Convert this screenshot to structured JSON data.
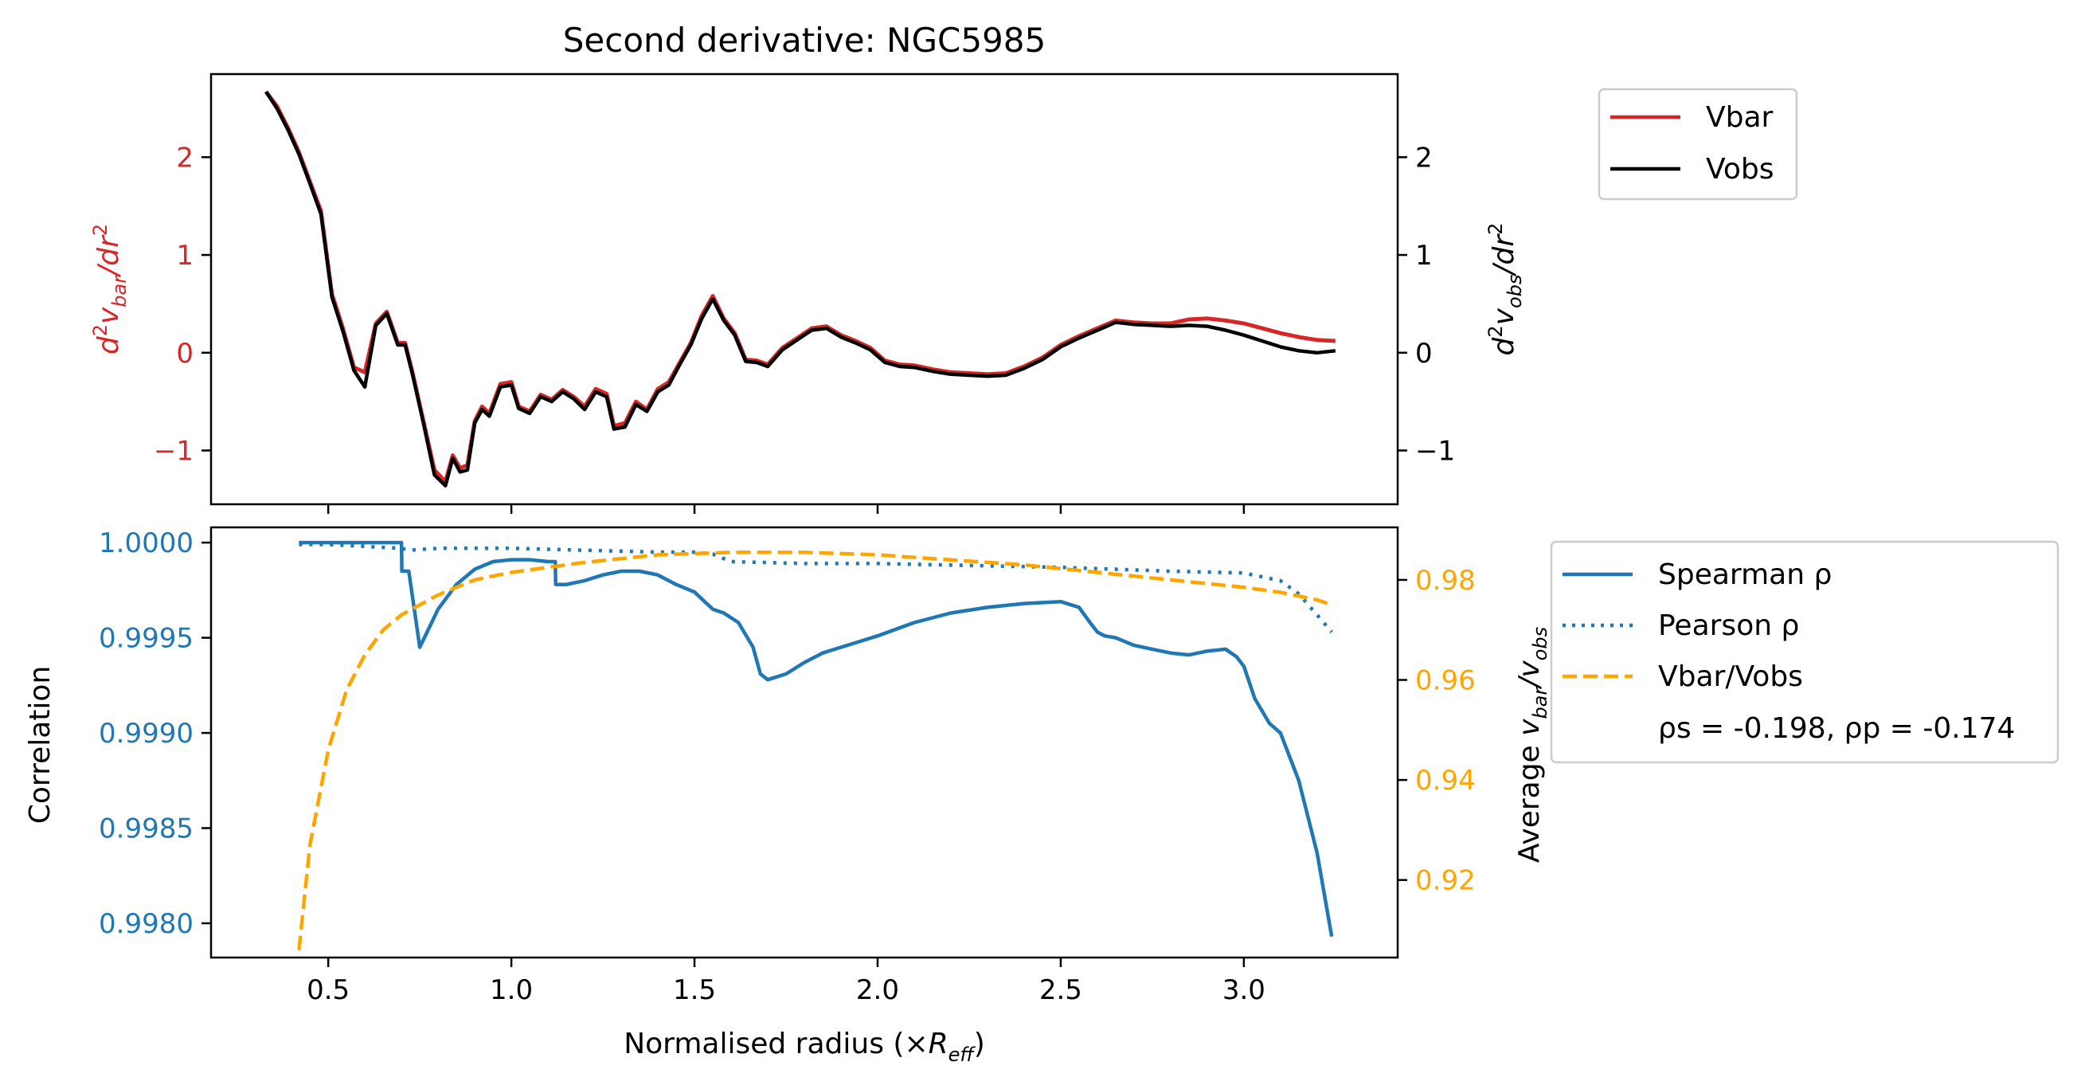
{
  "chart_data": [
    {
      "type": "line",
      "title": "Second derivative: NGC5985",
      "ylabel_left": "d²v_bar/dr²",
      "ylabel_right": "d²v_obs/dr²",
      "xlim": [
        0.18,
        3.42
      ],
      "ylim_left": [
        -1.55,
        2.85
      ],
      "ylim_right": [
        -1.55,
        2.85
      ],
      "grid": false,
      "legend_position": "right, outside top",
      "yticks_left": [
        "−1",
        "0",
        "1",
        "2"
      ],
      "yticks_right": [
        "−1",
        "0",
        "1",
        "2"
      ],
      "yticks_values": [
        -1,
        0,
        1,
        2
      ],
      "xticks_values": [
        0.5,
        1.0,
        1.5,
        2.0,
        2.5,
        3.0
      ],
      "series": [
        {
          "name": "Vbar",
          "color": "#d62728",
          "x": [
            0.33,
            0.36,
            0.39,
            0.42,
            0.45,
            0.48,
            0.51,
            0.54,
            0.57,
            0.6,
            0.63,
            0.66,
            0.69,
            0.71,
            0.73,
            0.76,
            0.79,
            0.82,
            0.84,
            0.86,
            0.88,
            0.9,
            0.92,
            0.94,
            0.97,
            1.0,
            1.02,
            1.05,
            1.08,
            1.11,
            1.14,
            1.17,
            1.2,
            1.23,
            1.26,
            1.28,
            1.31,
            1.34,
            1.37,
            1.4,
            1.43,
            1.46,
            1.49,
            1.52,
            1.55,
            1.58,
            1.61,
            1.64,
            1.67,
            1.7,
            1.74,
            1.78,
            1.82,
            1.86,
            1.9,
            1.94,
            1.98,
            2.02,
            2.06,
            2.1,
            2.15,
            2.2,
            2.25,
            2.3,
            2.35,
            2.4,
            2.45,
            2.5,
            2.55,
            2.6,
            2.65,
            2.7,
            2.75,
            2.8,
            2.85,
            2.9,
            2.95,
            3.0,
            3.05,
            3.1,
            3.15,
            3.2,
            3.25
          ],
          "y": [
            2.67,
            2.52,
            2.3,
            2.05,
            1.75,
            1.45,
            0.6,
            0.25,
            -0.15,
            -0.2,
            0.3,
            0.42,
            0.1,
            0.1,
            -0.2,
            -0.7,
            -1.2,
            -1.32,
            -1.05,
            -1.18,
            -1.15,
            -0.7,
            -0.55,
            -0.62,
            -0.32,
            -0.3,
            -0.55,
            -0.6,
            -0.43,
            -0.48,
            -0.38,
            -0.45,
            -0.55,
            -0.37,
            -0.42,
            -0.75,
            -0.72,
            -0.5,
            -0.58,
            -0.37,
            -0.3,
            -0.1,
            0.1,
            0.38,
            0.58,
            0.35,
            0.2,
            -0.07,
            -0.08,
            -0.12,
            0.05,
            0.15,
            0.25,
            0.27,
            0.18,
            0.12,
            0.05,
            -0.08,
            -0.12,
            -0.13,
            -0.17,
            -0.2,
            -0.21,
            -0.22,
            -0.21,
            -0.14,
            -0.05,
            0.08,
            0.17,
            0.25,
            0.33,
            0.31,
            0.3,
            0.3,
            0.34,
            0.35,
            0.33,
            0.3,
            0.25,
            0.2,
            0.16,
            0.13,
            0.12
          ]
        },
        {
          "name": "Vobs",
          "color": "#000000",
          "x": [
            0.33,
            0.36,
            0.39,
            0.42,
            0.45,
            0.48,
            0.51,
            0.54,
            0.57,
            0.6,
            0.63,
            0.66,
            0.69,
            0.71,
            0.73,
            0.76,
            0.79,
            0.82,
            0.84,
            0.86,
            0.88,
            0.9,
            0.92,
            0.94,
            0.97,
            1.0,
            1.02,
            1.05,
            1.08,
            1.11,
            1.14,
            1.17,
            1.2,
            1.23,
            1.26,
            1.28,
            1.31,
            1.34,
            1.37,
            1.4,
            1.43,
            1.46,
            1.49,
            1.52,
            1.55,
            1.58,
            1.61,
            1.64,
            1.67,
            1.7,
            1.74,
            1.78,
            1.82,
            1.86,
            1.9,
            1.94,
            1.98,
            2.02,
            2.06,
            2.1,
            2.15,
            2.2,
            2.25,
            2.3,
            2.35,
            2.4,
            2.45,
            2.5,
            2.55,
            2.6,
            2.65,
            2.7,
            2.75,
            2.8,
            2.85,
            2.9,
            2.95,
            3.0,
            3.05,
            3.1,
            3.15,
            3.2,
            3.25
          ],
          "y": [
            2.67,
            2.5,
            2.28,
            2.03,
            1.73,
            1.42,
            0.57,
            0.22,
            -0.18,
            -0.35,
            0.28,
            0.4,
            0.08,
            0.08,
            -0.22,
            -0.72,
            -1.25,
            -1.36,
            -1.08,
            -1.22,
            -1.2,
            -0.72,
            -0.58,
            -0.65,
            -0.35,
            -0.33,
            -0.57,
            -0.62,
            -0.45,
            -0.5,
            -0.4,
            -0.47,
            -0.58,
            -0.4,
            -0.45,
            -0.78,
            -0.76,
            -0.53,
            -0.6,
            -0.4,
            -0.33,
            -0.12,
            0.08,
            0.35,
            0.55,
            0.33,
            0.18,
            -0.09,
            -0.1,
            -0.14,
            0.03,
            0.13,
            0.23,
            0.25,
            0.16,
            0.1,
            0.03,
            -0.1,
            -0.14,
            -0.15,
            -0.19,
            -0.22,
            -0.23,
            -0.24,
            -0.23,
            -0.16,
            -0.07,
            0.06,
            0.15,
            0.23,
            0.31,
            0.29,
            0.28,
            0.27,
            0.28,
            0.27,
            0.23,
            0.18,
            0.12,
            0.06,
            0.02,
            0.0,
            0.02
          ]
        }
      ]
    },
    {
      "type": "line",
      "xlabel": "Normalised radius (×R_eff)",
      "ylabel_left": "Correlation",
      "ylabel_right": "Average v_bar/v_obs",
      "xlim": [
        0.18,
        3.42
      ],
      "ylim_left": [
        0.99782,
        1.00008
      ],
      "ylim_right": [
        0.9045,
        0.9905
      ],
      "grid": false,
      "legend_position": "right, outside top",
      "xticks": [
        "0.5",
        "1.0",
        "1.5",
        "2.0",
        "2.5",
        "3.0"
      ],
      "xticks_values": [
        0.5,
        1.0,
        1.5,
        2.0,
        2.5,
        3.0
      ],
      "yticks_left": [
        "0.9980",
        "0.9985",
        "0.9990",
        "0.9995",
        "1.0000"
      ],
      "yticks_left_values": [
        0.998,
        0.9985,
        0.999,
        0.9995,
        1.0
      ],
      "yticks_right": [
        "0.92",
        "0.94",
        "0.96",
        "0.98"
      ],
      "yticks_right_values": [
        0.92,
        0.94,
        0.96,
        0.98
      ],
      "annotation": "ρs = -0.198, ρp = -0.174",
      "series": [
        {
          "name": "Spearman ρ",
          "color": "#1f77b4",
          "style": "solid",
          "axis": "left",
          "x": [
            0.42,
            0.5,
            0.6,
            0.7,
            0.701,
            0.72,
            0.75,
            0.8,
            0.85,
            0.9,
            0.95,
            1.0,
            1.05,
            1.1,
            1.12,
            1.121,
            1.15,
            1.2,
            1.25,
            1.3,
            1.35,
            1.4,
            1.45,
            1.5,
            1.55,
            1.58,
            1.62,
            1.66,
            1.68,
            1.7,
            1.75,
            1.8,
            1.85,
            1.9,
            1.95,
            2.0,
            2.1,
            2.2,
            2.3,
            2.4,
            2.5,
            2.55,
            2.58,
            2.6,
            2.62,
            2.65,
            2.7,
            2.75,
            2.8,
            2.85,
            2.9,
            2.95,
            2.98,
            3.0,
            3.03,
            3.07,
            3.1,
            3.15,
            3.2,
            3.24
          ],
          "y": [
            1.0,
            1.0,
            1.0,
            1.0,
            0.99985,
            0.99985,
            0.99945,
            0.99965,
            0.99978,
            0.99986,
            0.9999,
            0.99991,
            0.99991,
            0.9999,
            0.9999,
            0.99978,
            0.99978,
            0.9998,
            0.99983,
            0.99985,
            0.99985,
            0.99983,
            0.99978,
            0.99974,
            0.99965,
            0.99963,
            0.99958,
            0.99945,
            0.99931,
            0.99928,
            0.99931,
            0.99937,
            0.99942,
            0.99945,
            0.99948,
            0.99951,
            0.99958,
            0.99963,
            0.99966,
            0.99968,
            0.99969,
            0.99966,
            0.99958,
            0.99953,
            0.99951,
            0.9995,
            0.99946,
            0.99944,
            0.99942,
            0.99941,
            0.99943,
            0.99944,
            0.9994,
            0.99935,
            0.99918,
            0.99905,
            0.999,
            0.99875,
            0.99837,
            0.99793
          ]
        },
        {
          "name": "Pearson ρ",
          "color": "#1f77b4",
          "style": "dotted",
          "axis": "left",
          "x": [
            0.42,
            0.5,
            0.6,
            0.7,
            0.72,
            0.8,
            1.0,
            1.2,
            1.4,
            1.5,
            1.55,
            1.6,
            1.8,
            2.0,
            2.5,
            2.8,
            3.0,
            3.1,
            3.15,
            3.2,
            3.24
          ],
          "y": [
            0.99999,
            0.99999,
            0.99998,
            0.99997,
            0.99996,
            0.99997,
            0.99997,
            0.99996,
            0.99995,
            0.99995,
            0.99994,
            0.9999,
            0.99989,
            0.99989,
            0.99987,
            0.99985,
            0.99984,
            0.9998,
            0.99973,
            0.99962,
            0.99953
          ]
        },
        {
          "name": "Vbar/Vobs",
          "color": "#ffa500",
          "style": "dashed",
          "axis": "right",
          "x": [
            0.42,
            0.45,
            0.5,
            0.55,
            0.6,
            0.65,
            0.7,
            0.8,
            0.9,
            1.0,
            1.2,
            1.4,
            1.6,
            1.8,
            2.0,
            2.2,
            2.4,
            2.6,
            2.8,
            3.0,
            3.1,
            3.2,
            3.24
          ],
          "y": [
            0.906,
            0.927,
            0.946,
            0.958,
            0.965,
            0.97,
            0.973,
            0.977,
            0.98,
            0.9815,
            0.9835,
            0.985,
            0.9855,
            0.9855,
            0.985,
            0.984,
            0.983,
            0.9815,
            0.98,
            0.9785,
            0.9775,
            0.976,
            0.975
          ]
        }
      ]
    }
  ]
}
